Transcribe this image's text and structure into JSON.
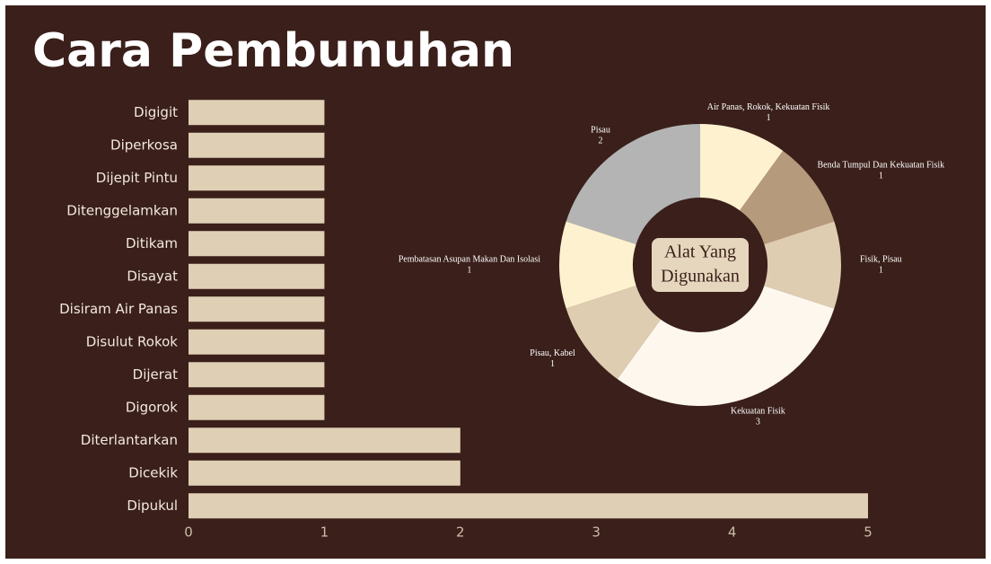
{
  "title": "Cara Pembunuhan",
  "chart_data": [
    {
      "type": "barh",
      "categories": [
        "Digigit",
        "Diperkosa",
        "Dijepit Pintu",
        "Ditenggelamkan",
        "Ditikam",
        "Disayat",
        "Disiram Air Panas",
        "Disulut Rokok",
        "Dijerat",
        "Digorok",
        "Diterlantarkan",
        "Dicekik",
        "Dipukul"
      ],
      "values": [
        1,
        1,
        1,
        1,
        1,
        1,
        1,
        1,
        1,
        1,
        2,
        2,
        5
      ],
      "color": "#dfcfb4",
      "xlim": [
        0,
        5
      ],
      "xticks": [
        0,
        1,
        2,
        3,
        4,
        5
      ]
    },
    {
      "type": "donut",
      "center_label": [
        "Alat Yang",
        "Digunakan"
      ],
      "categories": [
        "Air Panas, Rokok, Kekuatan Fisik",
        "Benda Tumpul Dan Kekuatan Fisik",
        "Fisik, Pisau",
        "Kekuatan Fisik",
        "Pisau, Kabel",
        "Pembatasan Asupan Makan Dan Isolasi",
        "Pisau"
      ],
      "values": [
        1,
        1,
        1,
        3,
        1,
        1,
        2
      ],
      "colors": [
        "#fdf1d0",
        "#b59b7c",
        "#dfcdb1",
        "#fdf7ed",
        "#dfcdb1",
        "#fdf1d0",
        "#b4b4b4"
      ]
    }
  ]
}
